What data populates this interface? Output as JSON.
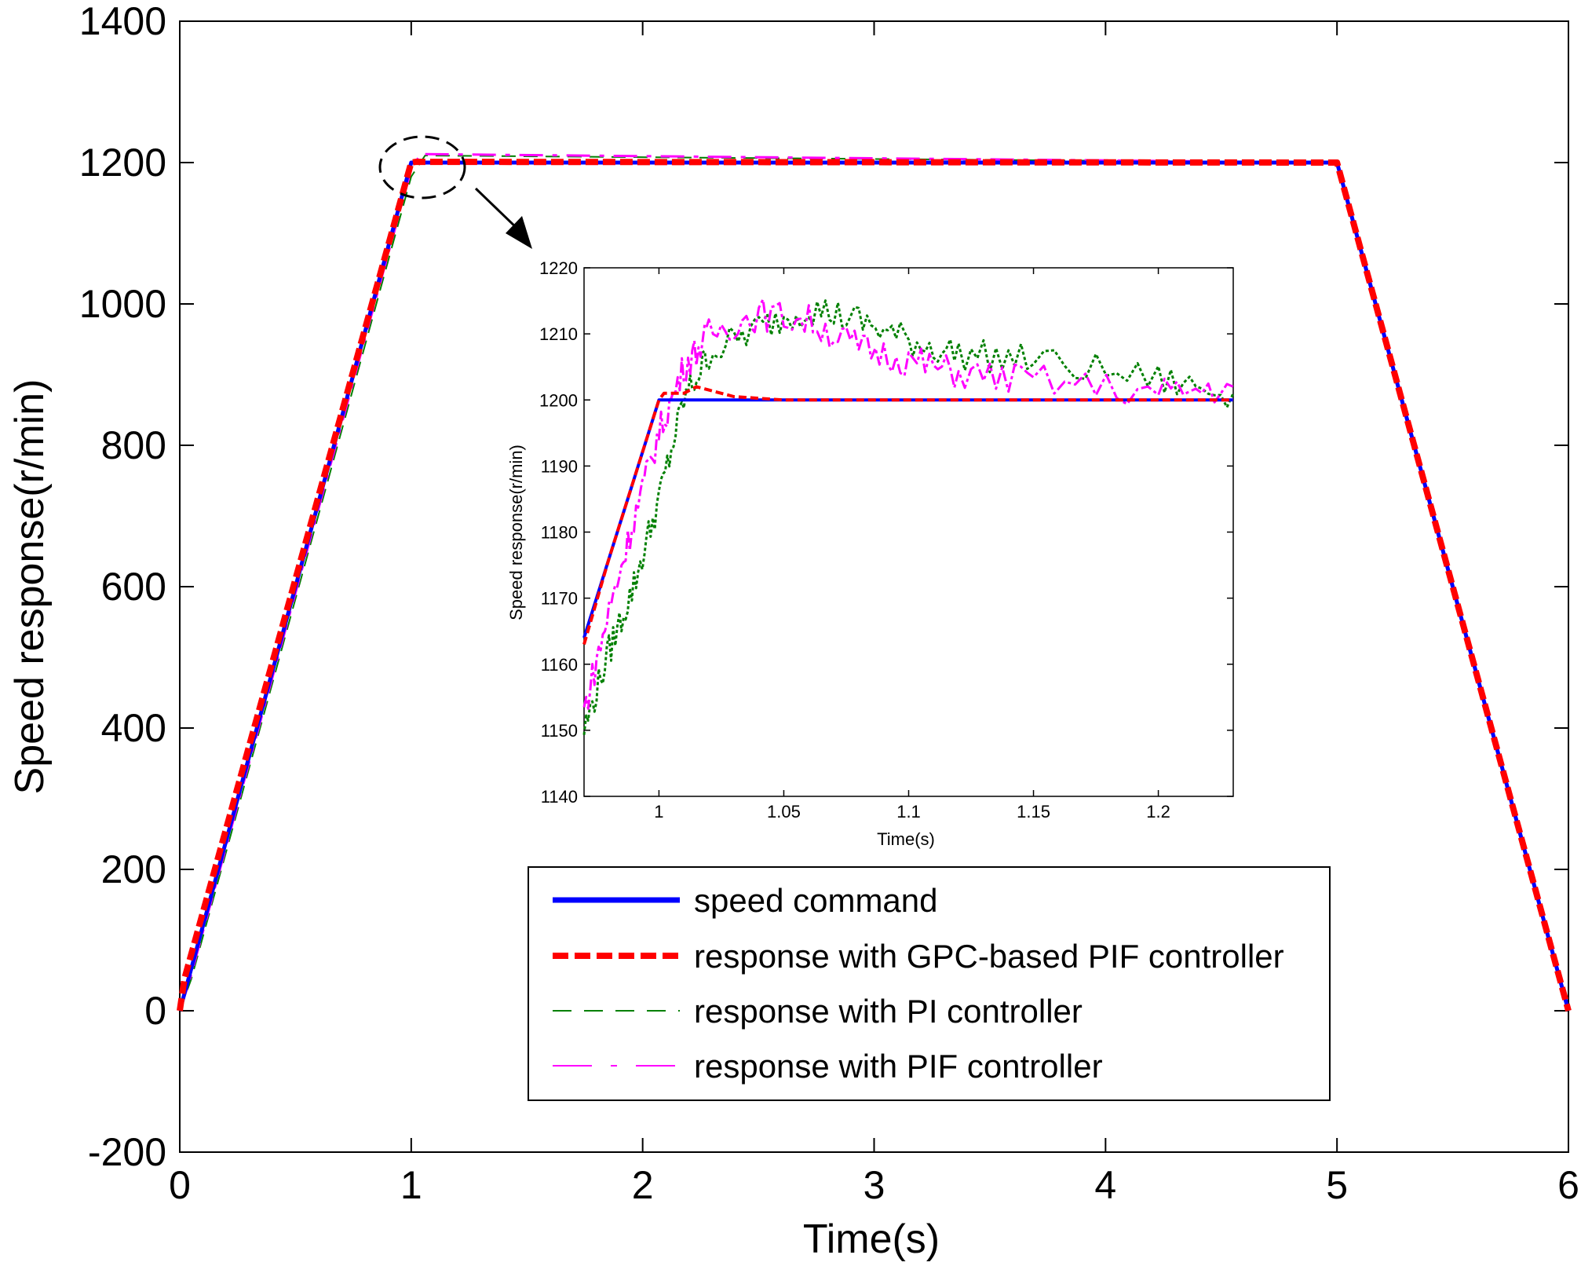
{
  "chart_data": [
    {
      "id": "main",
      "type": "line",
      "title": "",
      "xlabel": "Time(s)",
      "ylabel": "Speed response(r/min)",
      "xlim": [
        0,
        6
      ],
      "ylim": [
        -200,
        1400
      ],
      "xticks": [
        "0",
        "1",
        "2",
        "3",
        "4",
        "5",
        "6"
      ],
      "yticks": [
        "-200",
        "0",
        "200",
        "400",
        "600",
        "800",
        "1000",
        "1200",
        "1400"
      ],
      "grid": false,
      "legend_position": "bottom-center",
      "series": [
        {
          "name": "speed command",
          "color": "#0000ff",
          "style": "solid",
          "x": [
            0,
            1,
            5,
            6
          ],
          "y": [
            0,
            1200,
            1200,
            0
          ]
        },
        {
          "name": "response with GPC-based PIF controller",
          "color": "#ff0000",
          "style": "dashed",
          "x": [
            0,
            0.02,
            1,
            1.02,
            5,
            6
          ],
          "y": [
            0,
            45,
            1200,
            1201,
            1200,
            0
          ]
        },
        {
          "name": "response with PI controller",
          "color": "#008000",
          "style": "dashed-thin",
          "x": [
            0,
            0.05,
            1,
            1.06,
            5,
            5.05,
            6
          ],
          "y": [
            0,
            45,
            1180,
            1210,
            1200,
            1145,
            0
          ]
        },
        {
          "name": "response with PIF controller",
          "color": "#ff00ff",
          "style": "dash-dot",
          "x": [
            0,
            0.04,
            1,
            1.04,
            5,
            5.04,
            6
          ],
          "y": [
            0,
            40,
            1190,
            1212,
            1200,
            1152,
            0
          ]
        }
      ]
    },
    {
      "id": "inset",
      "type": "line",
      "title": "",
      "xlabel": "Time(s)",
      "ylabel": "Speed response(r/min)",
      "xlim": [
        0.97,
        1.23
      ],
      "ylim": [
        1140,
        1220
      ],
      "xticks": [
        "1",
        "1.05",
        "1.1",
        "1.15",
        "1.2"
      ],
      "yticks": [
        "1140",
        "1150",
        "1160",
        "1170",
        "1180",
        "1190",
        "1200",
        "1210",
        "1220"
      ],
      "grid": false,
      "series": [
        {
          "name": "speed command",
          "color": "#0000ff",
          "x": [
            0.97,
            1.0,
            1.23
          ],
          "y": [
            1164,
            1200,
            1200
          ]
        },
        {
          "name": "response with GPC-based PIF controller",
          "color": "#ff0000",
          "x": [
            0.97,
            0.98,
            0.99,
            1.0,
            1.002,
            1.005,
            1.01,
            1.015,
            1.02,
            1.025,
            1.03,
            1.05,
            1.1,
            1.15,
            1.2,
            1.23
          ],
          "y": [
            1163,
            1176,
            1188,
            1200,
            1201,
            1201,
            1201,
            1202,
            1201.5,
            1201,
            1200.5,
            1200,
            1200,
            1200,
            1200,
            1200
          ]
        },
        {
          "name": "response with PI controller",
          "color": "#008000",
          "x": [
            0.97,
            0.98,
            0.99,
            1.0,
            1.01,
            1.02,
            1.04,
            1.06,
            1.08,
            1.1,
            1.12,
            1.15,
            1.2,
            1.23
          ],
          "y": [
            1150,
            1162,
            1172,
            1185,
            1200,
            1207,
            1211,
            1214,
            1212,
            1209,
            1207,
            1206,
            1203,
            1201
          ]
        },
        {
          "name": "response with PIF controller",
          "color": "#ff00ff",
          "x": [
            0.97,
            0.98,
            0.99,
            1.0,
            1.01,
            1.02,
            1.04,
            1.06,
            1.08,
            1.1,
            1.12,
            1.15,
            1.2,
            1.23
          ],
          "y": [
            1153,
            1168,
            1182,
            1195,
            1205,
            1210,
            1213,
            1212,
            1208,
            1206,
            1204,
            1203,
            1201,
            1202
          ]
        }
      ]
    }
  ]
}
